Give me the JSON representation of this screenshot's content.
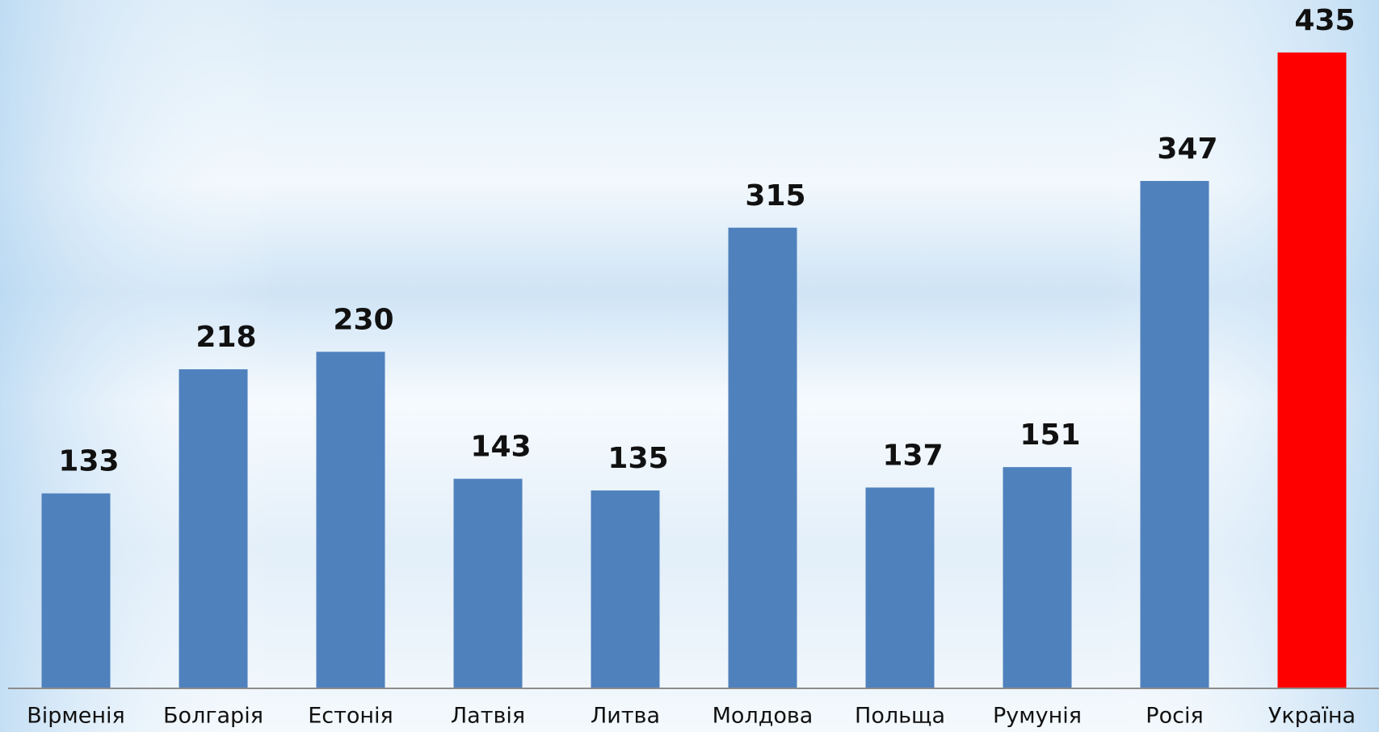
{
  "chart_data": {
    "type": "bar",
    "categories": [
      "Вірменія",
      "Болгарія",
      "Естонія",
      "Латвія",
      "Литва",
      "Молдова",
      "Польща",
      "Румунія",
      "Росія",
      "Україна"
    ],
    "values": [
      133,
      218,
      230,
      143,
      135,
      315,
      137,
      151,
      347,
      435
    ],
    "colors": [
      "#4f81bd",
      "#4f81bd",
      "#4f81bd",
      "#4f81bd",
      "#4f81bd",
      "#4f81bd",
      "#4f81bd",
      "#4f81bd",
      "#4f81bd",
      "#ff0000"
    ]
  }
}
